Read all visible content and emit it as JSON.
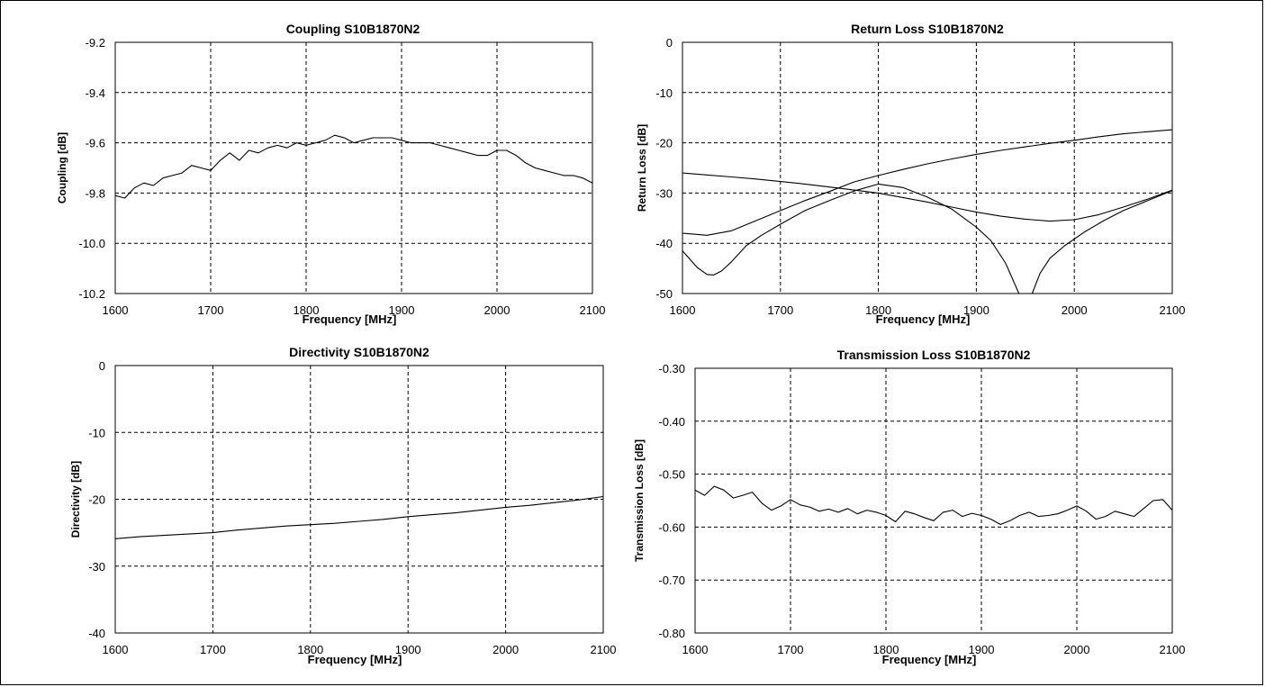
{
  "chart_data": [
    {
      "type": "line",
      "title": "Coupling S10B1870N2",
      "xlabel": "Frequency [MHz]",
      "ylabel": "Coupling [dB]",
      "xlim": [
        1600,
        2100
      ],
      "ylim": [
        -10.2,
        -9.2
      ],
      "xticks": [
        "1600",
        "1700",
        "1800",
        "1900",
        "2000",
        "2100"
      ],
      "yticks": [
        "-9.2",
        "-9.4",
        "-9.6",
        "-9.8",
        "-10.0",
        "-10.2"
      ],
      "ytick_values": [
        -9.2,
        -9.4,
        -9.6,
        -9.8,
        -10.0,
        -10.2
      ],
      "grid": true,
      "series": [
        {
          "x": [
            1600,
            1610,
            1620,
            1630,
            1640,
            1650,
            1660,
            1670,
            1680,
            1690,
            1700,
            1710,
            1720,
            1730,
            1740,
            1750,
            1760,
            1770,
            1780,
            1790,
            1800,
            1810,
            1820,
            1830,
            1840,
            1850,
            1860,
            1870,
            1880,
            1890,
            1900,
            1910,
            1920,
            1930,
            1940,
            1950,
            1960,
            1970,
            1980,
            1990,
            2000,
            2010,
            2020,
            2030,
            2040,
            2050,
            2060,
            2070,
            2080,
            2090,
            2100
          ],
          "values": [
            -9.81,
            -9.82,
            -9.78,
            -9.76,
            -9.77,
            -9.74,
            -9.73,
            -9.72,
            -9.69,
            -9.7,
            -9.71,
            -9.67,
            -9.64,
            -9.67,
            -9.63,
            -9.64,
            -9.62,
            -9.61,
            -9.62,
            -9.6,
            -9.61,
            -9.6,
            -9.59,
            -9.57,
            -9.58,
            -9.6,
            -9.59,
            -9.58,
            -9.58,
            -9.58,
            -9.59,
            -9.6,
            -9.6,
            -9.6,
            -9.61,
            -9.62,
            -9.63,
            -9.64,
            -9.65,
            -9.65,
            -9.63,
            -9.63,
            -9.65,
            -9.68,
            -9.7,
            -9.71,
            -9.72,
            -9.73,
            -9.73,
            -9.74,
            -9.76
          ]
        }
      ]
    },
    {
      "type": "line",
      "title": "Return Loss S10B1870N2",
      "xlabel": "Frequency [MHz]",
      "ylabel": "Return Loss [dB]",
      "xlim": [
        1600,
        2100
      ],
      "ylim": [
        -50,
        0
      ],
      "xticks": [
        "1600",
        "1700",
        "1800",
        "1900",
        "2000",
        "2100"
      ],
      "yticks": [
        "0",
        "-10",
        "-20",
        "-30",
        "-40",
        "-50"
      ],
      "ytick_values": [
        0,
        -10,
        -20,
        -30,
        -40,
        -50
      ],
      "grid": true,
      "series": [
        {
          "x": [
            1600,
            1625,
            1650,
            1675,
            1700,
            1725,
            1750,
            1775,
            1800,
            1825,
            1850,
            1875,
            1900,
            1925,
            1950,
            1975,
            2000,
            2025,
            2050,
            2075,
            2100
          ],
          "values": [
            -26,
            -26.4,
            -26.8,
            -27.2,
            -27.7,
            -28.2,
            -28.8,
            -29.4,
            -30,
            -30.9,
            -31.8,
            -32.8,
            -33.8,
            -34.6,
            -35.2,
            -35.6,
            -35.3,
            -34.3,
            -32.8,
            -31.2,
            -29.4
          ]
        },
        {
          "x": [
            1600,
            1625,
            1650,
            1675,
            1700,
            1725,
            1750,
            1775,
            1800,
            1825,
            1850,
            1875,
            1900,
            1925,
            1950,
            1975,
            2000,
            2025,
            2050,
            2075,
            2100
          ],
          "values": [
            -38,
            -38.4,
            -37.5,
            -35.5,
            -33.5,
            -31.5,
            -29.7,
            -27.8,
            -26.5,
            -25.3,
            -24.2,
            -23.2,
            -22.3,
            -21.5,
            -20.8,
            -20.1,
            -19.5,
            -18.8,
            -18.2,
            -17.8,
            -17.4
          ]
        },
        {
          "x": [
            1600,
            1615,
            1625,
            1632,
            1640,
            1650,
            1665,
            1680,
            1700,
            1725,
            1750,
            1775,
            1800,
            1825,
            1850,
            1875,
            1900,
            1915,
            1930,
            1943,
            1950,
            1957,
            1965,
            1975,
            1990,
            2010,
            2030,
            2050,
            2075,
            2100
          ],
          "values": [
            -41.5,
            -44.8,
            -46.2,
            -46.3,
            -45.5,
            -43.7,
            -40.5,
            -38.5,
            -36.2,
            -33.5,
            -31.5,
            -29.6,
            -28.2,
            -28.9,
            -30.8,
            -33.2,
            -36.8,
            -39.5,
            -44,
            -49.8,
            -52,
            -50,
            -46,
            -43,
            -40.5,
            -37.8,
            -35.5,
            -33.5,
            -31.5,
            -29.5
          ]
        }
      ]
    },
    {
      "type": "line",
      "title": "Directivity S10B1870N2",
      "xlabel": "Frequency [MHz]",
      "ylabel": "Directivity [dB]",
      "xlim": [
        1600,
        2100
      ],
      "ylim": [
        -40,
        0
      ],
      "xticks": [
        "1600",
        "1700",
        "1800",
        "1900",
        "2000",
        "2100"
      ],
      "yticks": [
        "0",
        "-10",
        "-20",
        "-30",
        "-40"
      ],
      "ytick_values": [
        0,
        -10,
        -20,
        -30,
        -40
      ],
      "grid": true,
      "series": [
        {
          "x": [
            1600,
            1625,
            1650,
            1675,
            1700,
            1725,
            1750,
            1775,
            1800,
            1825,
            1850,
            1875,
            1900,
            1925,
            1950,
            1975,
            2000,
            2025,
            2050,
            2075,
            2100
          ],
          "values": [
            -25.9,
            -25.6,
            -25.4,
            -25.2,
            -25,
            -24.6,
            -24.3,
            -24,
            -23.8,
            -23.6,
            -23.3,
            -23,
            -22.6,
            -22.3,
            -22,
            -21.6,
            -21.2,
            -20.9,
            -20.5,
            -20.1,
            -19.6
          ]
        }
      ]
    },
    {
      "type": "line",
      "title": "Transmission Loss S10B1870N2",
      "xlabel": "Frequency [MHz]",
      "ylabel": "Transmission Loss [dB]",
      "xlim": [
        1600,
        2100
      ],
      "ylim": [
        -0.8,
        -0.3
      ],
      "xticks": [
        "1600",
        "1700",
        "1800",
        "1900",
        "2000",
        "2100"
      ],
      "yticks": [
        "-0.30",
        "-0.40",
        "-0.50",
        "-0.60",
        "-0.70",
        "-0.80"
      ],
      "ytick_values": [
        -0.3,
        -0.4,
        -0.5,
        -0.6,
        -0.7,
        -0.8
      ],
      "grid": true,
      "series": [
        {
          "x": [
            1600,
            1610,
            1620,
            1630,
            1640,
            1650,
            1660,
            1670,
            1680,
            1690,
            1700,
            1710,
            1720,
            1730,
            1740,
            1750,
            1760,
            1770,
            1780,
            1790,
            1800,
            1810,
            1820,
            1830,
            1840,
            1850,
            1860,
            1870,
            1880,
            1890,
            1900,
            1910,
            1920,
            1930,
            1940,
            1950,
            1960,
            1970,
            1980,
            1990,
            2000,
            2010,
            2020,
            2030,
            2040,
            2050,
            2060,
            2070,
            2080,
            2090,
            2100
          ],
          "values": [
            -0.53,
            -0.54,
            -0.523,
            -0.53,
            -0.545,
            -0.54,
            -0.534,
            -0.555,
            -0.568,
            -0.56,
            -0.548,
            -0.558,
            -0.562,
            -0.57,
            -0.566,
            -0.572,
            -0.565,
            -0.575,
            -0.568,
            -0.572,
            -0.578,
            -0.59,
            -0.57,
            -0.575,
            -0.582,
            -0.588,
            -0.572,
            -0.568,
            -0.58,
            -0.574,
            -0.578,
            -0.585,
            -0.595,
            -0.588,
            -0.578,
            -0.572,
            -0.58,
            -0.578,
            -0.575,
            -0.568,
            -0.56,
            -0.57,
            -0.585,
            -0.58,
            -0.57,
            -0.575,
            -0.58,
            -0.565,
            -0.55,
            -0.548,
            -0.568
          ]
        }
      ]
    }
  ]
}
